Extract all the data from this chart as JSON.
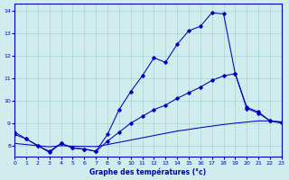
{
  "title": "Graphe des températures (°c)",
  "bg_color": "#d0ecec",
  "line_color": "#0000bb",
  "grid_color": "#a8d4d4",
  "xlim": [
    0,
    23
  ],
  "ylim": [
    7.5,
    14.3
  ],
  "yticks": [
    8,
    9,
    10,
    11,
    12,
    13,
    14
  ],
  "xticks": [
    0,
    1,
    2,
    3,
    4,
    5,
    6,
    7,
    8,
    9,
    10,
    11,
    12,
    13,
    14,
    15,
    16,
    17,
    18,
    19,
    20,
    21,
    22,
    23
  ],
  "curve1_x": [
    0,
    1,
    2,
    3,
    4,
    5,
    6,
    7,
    8,
    9,
    10,
    11,
    12,
    13,
    14,
    15,
    16,
    17,
    18,
    19,
    20,
    21,
    22,
    23
  ],
  "curve1_y": [
    8.6,
    8.3,
    8.0,
    7.7,
    8.1,
    7.9,
    7.85,
    7.75,
    8.5,
    9.6,
    10.4,
    11.1,
    11.9,
    11.7,
    12.5,
    13.1,
    13.3,
    13.9,
    13.85,
    11.2,
    9.7,
    9.5,
    9.1,
    9.05
  ],
  "curve2_x": [
    0,
    1,
    2,
    3,
    4,
    5,
    6,
    7,
    8,
    9,
    10,
    11,
    12,
    13,
    14,
    15,
    16,
    17,
    18,
    19,
    20,
    21,
    22,
    23
  ],
  "curve2_y": [
    8.5,
    8.3,
    8.0,
    7.75,
    8.1,
    7.9,
    7.85,
    7.75,
    8.2,
    8.6,
    9.0,
    9.3,
    9.6,
    9.8,
    10.1,
    10.35,
    10.6,
    10.9,
    11.1,
    11.2,
    9.65,
    9.45,
    9.1,
    9.05
  ],
  "curve3_x": [
    0,
    1,
    2,
    3,
    4,
    5,
    6,
    7,
    8,
    9,
    10,
    11,
    12,
    13,
    14,
    15,
    16,
    17,
    18,
    19,
    20,
    21,
    22,
    23
  ],
  "curve3_y": [
    8.1,
    8.05,
    8.0,
    7.95,
    8.0,
    7.98,
    7.97,
    7.96,
    8.05,
    8.15,
    8.25,
    8.35,
    8.45,
    8.55,
    8.65,
    8.72,
    8.8,
    8.87,
    8.94,
    9.0,
    9.05,
    9.1,
    9.1,
    9.0
  ]
}
